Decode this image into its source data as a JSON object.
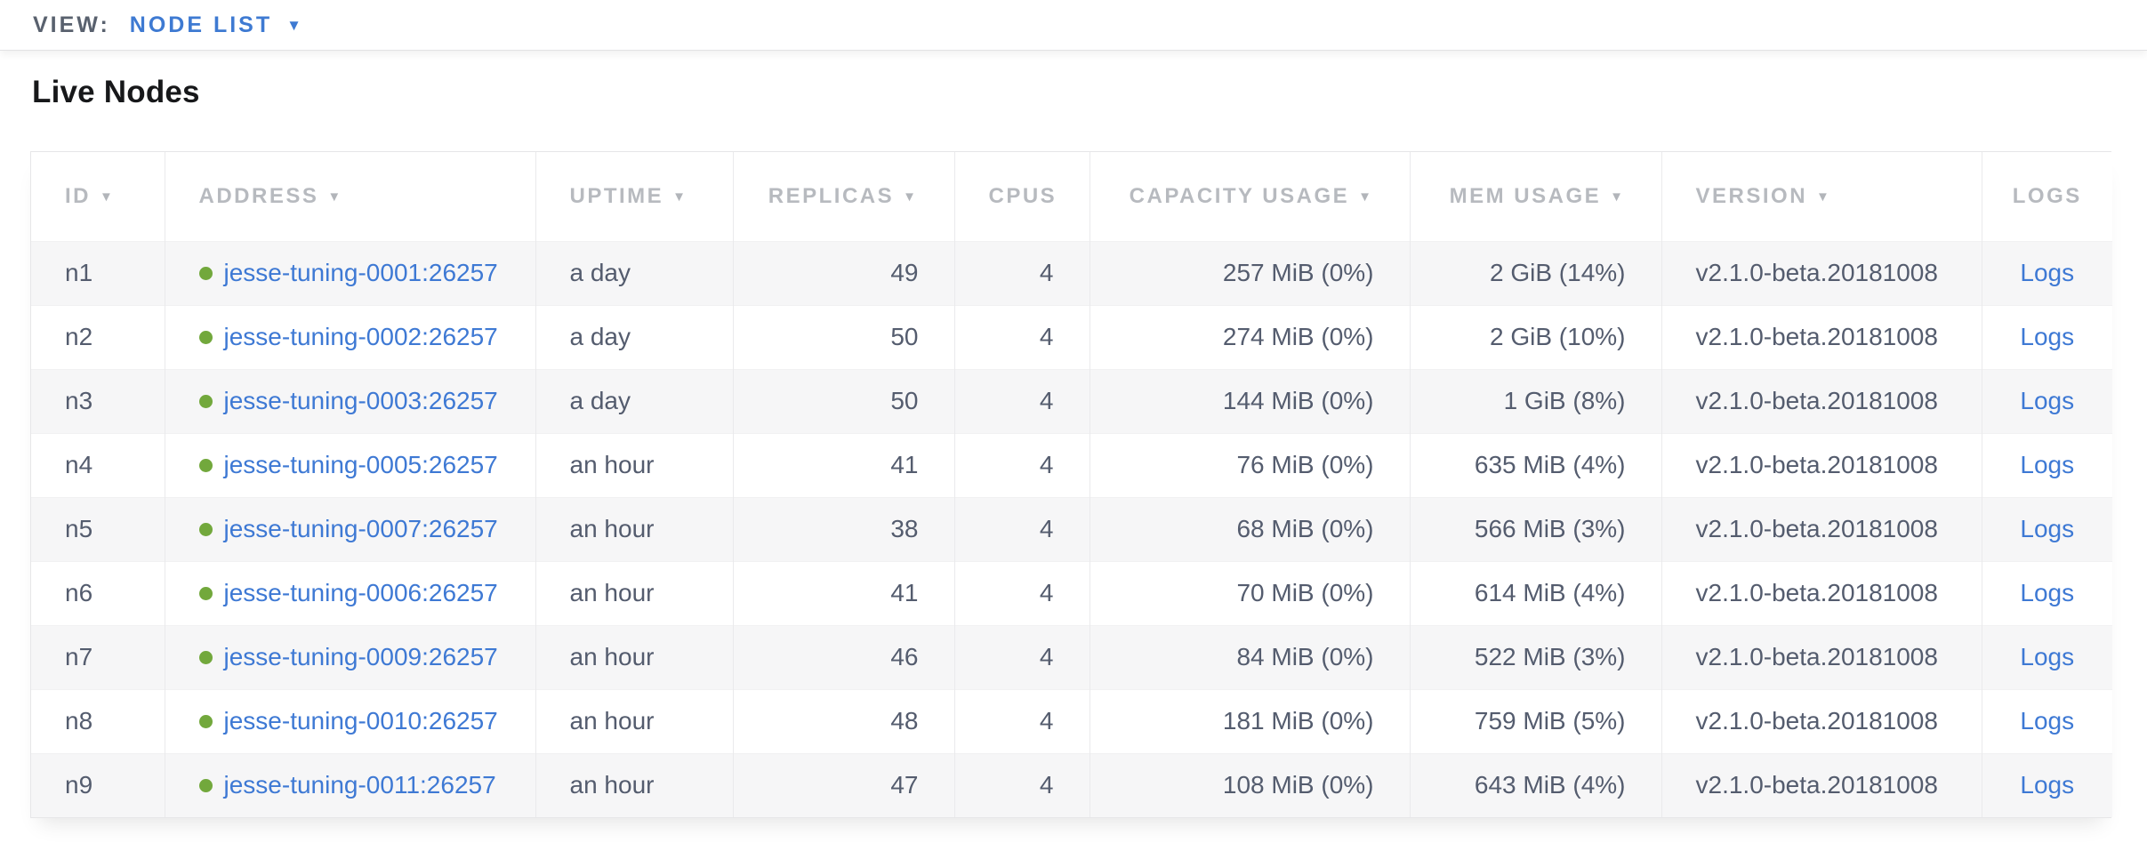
{
  "view_bar": {
    "label": "VIEW:",
    "selected": "NODE LIST",
    "caret_icon": "▼"
  },
  "page": {
    "title": "Live Nodes"
  },
  "table": {
    "sort_arrow_glyph": "▼",
    "columns": [
      {
        "key": "id",
        "label": "ID",
        "sortable": true,
        "align": "left"
      },
      {
        "key": "address",
        "label": "ADDRESS",
        "sortable": true,
        "align": "left"
      },
      {
        "key": "uptime",
        "label": "UPTIME",
        "sortable": true,
        "align": "left"
      },
      {
        "key": "replicas",
        "label": "REPLICAS",
        "sortable": true,
        "align": "right"
      },
      {
        "key": "cpus",
        "label": "CPUS",
        "sortable": false,
        "align": "right"
      },
      {
        "key": "capacity",
        "label": "CAPACITY USAGE",
        "sortable": true,
        "align": "right"
      },
      {
        "key": "mem",
        "label": "MEM USAGE",
        "sortable": true,
        "align": "right"
      },
      {
        "key": "version",
        "label": "VERSION",
        "sortable": true,
        "align": "left"
      },
      {
        "key": "logs",
        "label": "LOGS",
        "sortable": false,
        "align": "center"
      }
    ],
    "status_color": "#72a83c",
    "link_color": "#3e79d4",
    "rows": [
      {
        "id": "n1",
        "address": "jesse-tuning-0001:26257",
        "uptime": "a day",
        "replicas": "49",
        "cpus": "4",
        "capacity": "257 MiB (0%)",
        "mem": "2 GiB (14%)",
        "version": "v2.1.0-beta.20181008",
        "logs": "Logs"
      },
      {
        "id": "n2",
        "address": "jesse-tuning-0002:26257",
        "uptime": "a day",
        "replicas": "50",
        "cpus": "4",
        "capacity": "274 MiB (0%)",
        "mem": "2 GiB (10%)",
        "version": "v2.1.0-beta.20181008",
        "logs": "Logs"
      },
      {
        "id": "n3",
        "address": "jesse-tuning-0003:26257",
        "uptime": "a day",
        "replicas": "50",
        "cpus": "4",
        "capacity": "144 MiB (0%)",
        "mem": "1 GiB (8%)",
        "version": "v2.1.0-beta.20181008",
        "logs": "Logs"
      },
      {
        "id": "n4",
        "address": "jesse-tuning-0005:26257",
        "uptime": "an hour",
        "replicas": "41",
        "cpus": "4",
        "capacity": "76 MiB (0%)",
        "mem": "635 MiB (4%)",
        "version": "v2.1.0-beta.20181008",
        "logs": "Logs"
      },
      {
        "id": "n5",
        "address": "jesse-tuning-0007:26257",
        "uptime": "an hour",
        "replicas": "38",
        "cpus": "4",
        "capacity": "68 MiB (0%)",
        "mem": "566 MiB (3%)",
        "version": "v2.1.0-beta.20181008",
        "logs": "Logs"
      },
      {
        "id": "n6",
        "address": "jesse-tuning-0006:26257",
        "uptime": "an hour",
        "replicas": "41",
        "cpus": "4",
        "capacity": "70 MiB (0%)",
        "mem": "614 MiB (4%)",
        "version": "v2.1.0-beta.20181008",
        "logs": "Logs"
      },
      {
        "id": "n7",
        "address": "jesse-tuning-0009:26257",
        "uptime": "an hour",
        "replicas": "46",
        "cpus": "4",
        "capacity": "84 MiB (0%)",
        "mem": "522 MiB (3%)",
        "version": "v2.1.0-beta.20181008",
        "logs": "Logs"
      },
      {
        "id": "n8",
        "address": "jesse-tuning-0010:26257",
        "uptime": "an hour",
        "replicas": "48",
        "cpus": "4",
        "capacity": "181 MiB (0%)",
        "mem": "759 MiB (5%)",
        "version": "v2.1.0-beta.20181008",
        "logs": "Logs"
      },
      {
        "id": "n9",
        "address": "jesse-tuning-0011:26257",
        "uptime": "an hour",
        "replicas": "47",
        "cpus": "4",
        "capacity": "108 MiB (0%)",
        "mem": "643 MiB (4%)",
        "version": "v2.1.0-beta.20181008",
        "logs": "Logs"
      }
    ]
  }
}
